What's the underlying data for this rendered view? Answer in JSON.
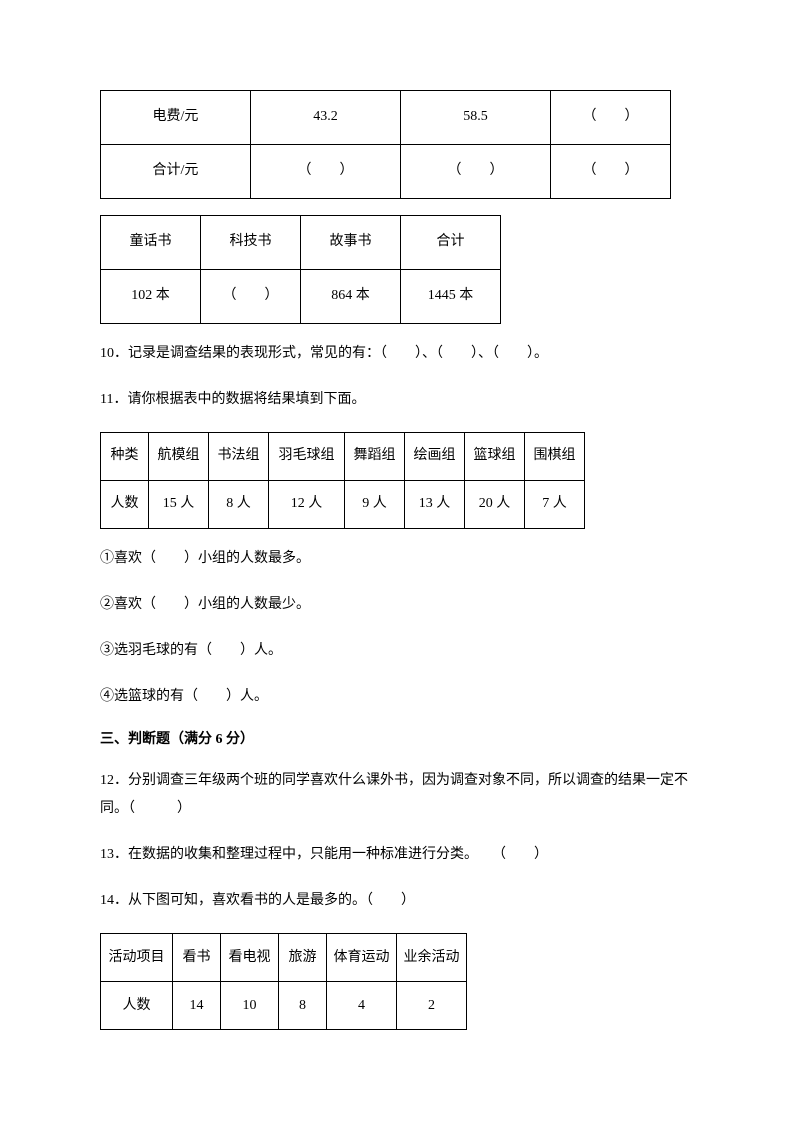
{
  "table1": {
    "rows": [
      {
        "label": "电费/元",
        "c1": "43.2",
        "c2": "58.5",
        "c3": "（　　）"
      },
      {
        "label": "合计/元",
        "c1": "（　　）",
        "c2": "（　　）",
        "c3": "（　　）"
      }
    ]
  },
  "table2": {
    "headers": [
      "童话书",
      "科技书",
      "故事书",
      "合计"
    ],
    "values": [
      "102 本",
      "（　　）",
      "864 本",
      "1445 本"
    ]
  },
  "q10": "10．记录是调查结果的表现形式，常见的有：（　　）、（　　）、（　　）。",
  "q11_intro": "11．请你根据表中的数据将结果填到下面。",
  "table3": {
    "header": [
      "种类",
      "航模组",
      "书法组",
      "羽毛球组",
      "舞蹈组",
      "绘画组",
      "篮球组",
      "围棋组"
    ],
    "values": [
      "人数",
      "15 人",
      "8 人",
      "12 人",
      "9 人",
      "13 人",
      "20 人",
      "7 人"
    ]
  },
  "q11_items": {
    "i1": "①喜欢（　　）小组的人数最多。",
    "i2": "②喜欢（　　）小组的人数最少。",
    "i3": "③选羽毛球的有（　　）人。",
    "i4": "④选篮球的有（　　）人。"
  },
  "section3_title": "三、判断题（满分 6 分）",
  "q12": "12．分别调查三年级两个班的同学喜欢什么课外书，因为调查对象不同，所以调查的结果一定不同。（　　　）",
  "q13": "13．在数据的收集和整理过程中，只能用一种标准进行分类。　　（　　）",
  "q14": "14．从下图可知，喜欢看书的人是最多的。（　　）",
  "table4": {
    "header": [
      "活动项目",
      "看书",
      "看电视",
      "旅游",
      "体育运动",
      "业余活动"
    ],
    "values": [
      "人数",
      "14",
      "10",
      "8",
      "4",
      "2"
    ]
  }
}
